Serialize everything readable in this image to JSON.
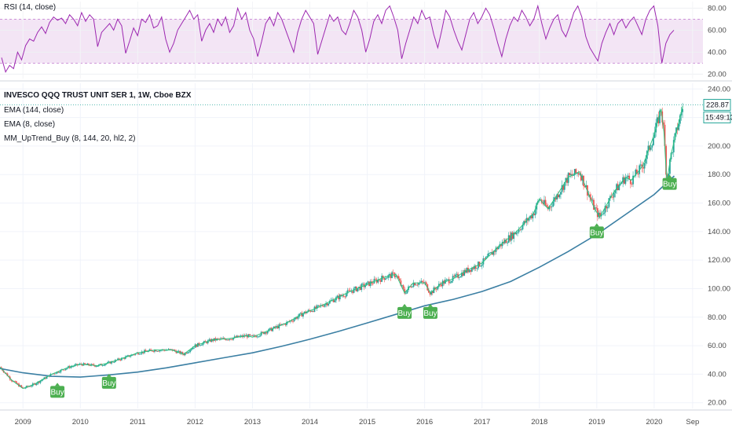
{
  "colors": {
    "rsi_line": "#9c27b0",
    "rsi_band_fill": "#f3e5f5",
    "rsi_band_border": "#9c27b0",
    "candle_up": "#26a69a",
    "candle_down": "#ef5350",
    "ema_long": "#3b7fa3",
    "ema_short": "#2ec27e",
    "buy": "#4caf50",
    "price_line": "#26a69a"
  },
  "chart_data": [
    {
      "type": "line",
      "title": "RSI (14, close)",
      "ylim": [
        16,
        86
      ],
      "yticks": [
        "80.00",
        "60.00",
        "40.00",
        "20.00"
      ],
      "band": [
        30,
        70
      ],
      "series": [
        {
          "values": [
            35,
            22,
            28,
            25,
            40,
            33,
            46,
            52,
            50,
            58,
            63,
            57,
            67,
            72,
            69,
            71,
            66,
            74,
            70,
            64,
            76,
            68,
            74,
            70,
            45,
            58,
            62,
            66,
            60,
            70,
            64,
            39,
            50,
            62,
            55,
            70,
            67,
            74,
            62,
            64,
            72,
            52,
            40,
            48,
            60,
            66,
            72,
            78,
            70,
            74,
            50,
            60,
            66,
            58,
            70,
            64,
            72,
            58,
            64,
            80,
            70,
            76,
            60,
            52,
            36,
            50,
            66,
            72,
            64,
            76,
            70,
            60,
            50,
            40,
            58,
            70,
            78,
            72,
            66,
            38,
            50,
            62,
            74,
            68,
            72,
            60,
            56,
            66,
            78,
            72,
            60,
            40,
            52,
            68,
            74,
            66,
            78,
            82,
            72,
            60,
            34,
            48,
            60,
            72,
            66,
            78,
            70,
            72,
            56,
            44,
            60,
            78,
            72,
            60,
            50,
            42,
            56,
            70,
            76,
            66,
            72,
            80,
            74,
            62,
            48,
            36,
            52,
            64,
            72,
            68,
            78,
            72,
            64,
            70,
            82,
            66,
            52,
            62,
            70,
            74,
            60,
            54,
            64,
            76,
            82,
            72,
            54,
            44,
            38,
            32,
            48,
            58,
            66,
            56,
            66,
            70,
            62,
            68,
            72,
            64,
            56,
            70,
            78,
            82,
            64,
            30,
            48,
            56,
            60
          ]
        }
      ]
    },
    {
      "type": "candlestick",
      "title": "INVESCO QQQ TRUST UNIT SER 1, 1W, Cboe BZX",
      "ylim": [
        16,
        244
      ],
      "yticks": [
        "240.00",
        "220.00",
        "200.00",
        "180.00",
        "160.00",
        "140.00",
        "120.00",
        "100.00",
        "80.00",
        "60.00",
        "40.00",
        "20.00"
      ],
      "x_labels": [
        "2009",
        "2010",
        "2011",
        "2012",
        "2013",
        "2014",
        "2015",
        "2016",
        "2017",
        "2018",
        "2019",
        "2020",
        "Sep"
      ],
      "x_range": [
        2008.6,
        2020.85
      ],
      "last_price": "228.87",
      "countdown": "15:49:13",
      "series": [
        {
          "name": "EMA (144, close)",
          "x": [
            2008.6,
            2009.0,
            2009.5,
            2010.0,
            2010.5,
            2011.0,
            2011.5,
            2012.0,
            2012.5,
            2013.0,
            2013.5,
            2014.0,
            2014.5,
            2015.0,
            2015.5,
            2016.0,
            2016.5,
            2017.0,
            2017.5,
            2018.0,
            2018.5,
            2019.0,
            2019.5,
            2020.0,
            2020.35
          ],
          "values": [
            44,
            41,
            38.5,
            38,
            39.5,
            41.5,
            44.5,
            48,
            51.5,
            55,
            59.5,
            64.5,
            70,
            76,
            82,
            88,
            92.5,
            98,
            105,
            115,
            126,
            138,
            152,
            166,
            179
          ]
        },
        {
          "name": "EMA (8, close)",
          "x": [
            2008.6,
            2008.8,
            2009.0,
            2009.2,
            2009.5,
            2009.8,
            2010.0,
            2010.3,
            2010.5,
            2010.8,
            2011.0,
            2011.3,
            2011.6,
            2011.8,
            2012.0,
            2012.3,
            2012.6,
            2012.9,
            2013.0,
            2013.3,
            2013.6,
            2013.9,
            2014.1,
            2014.4,
            2014.7,
            2015.0,
            2015.3,
            2015.5,
            2015.65,
            2015.8,
            2016.0,
            2016.1,
            2016.3,
            2016.5,
            2016.7,
            2016.9,
            2017.0,
            2017.3,
            2017.6,
            2017.9,
            2018.0,
            2018.15,
            2018.3,
            2018.5,
            2018.7,
            2018.95,
            2019.05,
            2019.3,
            2019.5,
            2019.6,
            2019.8,
            2020.0,
            2020.12,
            2020.17,
            2020.22,
            2020.3,
            2020.4,
            2020.5
          ],
          "values": [
            45,
            36,
            30,
            33,
            40,
            45,
            47,
            46,
            48,
            52,
            55,
            57,
            57,
            54,
            60,
            64,
            65,
            67,
            66,
            71,
            76,
            83,
            86,
            92,
            98,
            103,
            108,
            110,
            97,
            104,
            104,
            97,
            104,
            107,
            112,
            116,
            118,
            130,
            140,
            153,
            163,
            156,
            165,
            178,
            182,
            157,
            150,
            168,
            178,
            176,
            186,
            208,
            226,
            210,
            175,
            195,
            212,
            228
          ]
        }
      ],
      "indicator_label": "MM_UpTrend_Buy (8, 144, 20, hl2, 2)",
      "buy_signals": [
        {
          "x": 2009.6,
          "label": "Buy"
        },
        {
          "x": 2010.5,
          "label": "Buy"
        },
        {
          "x": 2015.65,
          "label": "Buy"
        },
        {
          "x": 2016.1,
          "label": "Buy"
        },
        {
          "x": 2019.0,
          "label": "Buy"
        },
        {
          "x": 2020.27,
          "label": "Buy"
        }
      ]
    }
  ]
}
